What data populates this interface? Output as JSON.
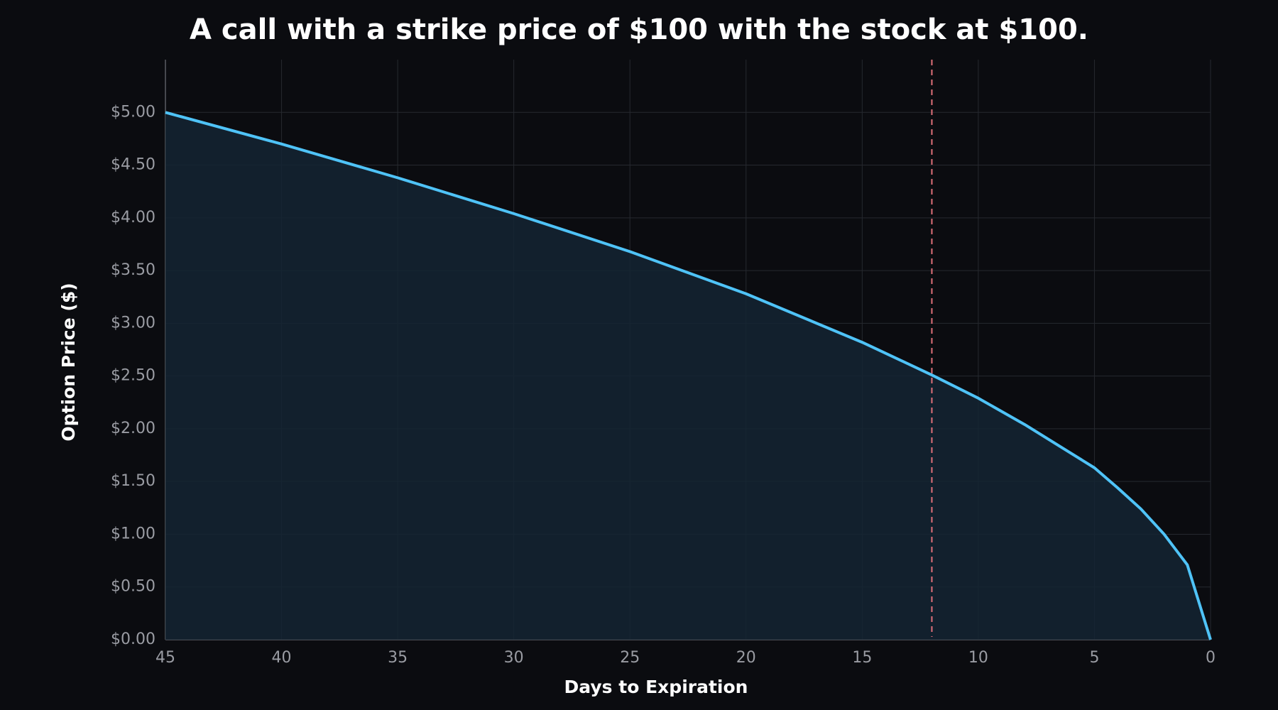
{
  "chart_data": {
    "type": "line",
    "title": "A call with a strike price of $100 with the stock at $100.",
    "x_label": "Days to Expiration",
    "y_label": "Option Price ($)",
    "x": [
      45,
      40,
      35,
      30,
      25,
      20,
      15,
      12,
      10,
      8,
      5,
      4,
      3,
      2,
      1,
      0
    ],
    "series": [
      {
        "color": "#4fc3f7",
        "values": [
          5.0,
          4.7,
          4.38,
          4.04,
          3.68,
          3.28,
          2.82,
          2.51,
          2.29,
          2.04,
          1.63,
          1.44,
          1.24,
          1.0,
          0.71,
          0.0
        ]
      }
    ],
    "vline": {
      "x": 12,
      "color": "#e0707a"
    },
    "xlim": [
      45,
      0
    ],
    "xticks": [
      45,
      40,
      35,
      30,
      25,
      20,
      15,
      10,
      5,
      0
    ],
    "ylim": [
      0,
      5.5
    ],
    "yticks": [
      {
        "value": 0,
        "label": "$0.00"
      },
      {
        "value": 0.5,
        "label": "$0.50"
      },
      {
        "value": 1,
        "label": "$1.00"
      },
      {
        "value": 1.5,
        "label": "$1.50"
      },
      {
        "value": 2,
        "label": "$2.00"
      },
      {
        "value": 2.5,
        "label": "$2.50"
      },
      {
        "value": 3,
        "label": "$3.00"
      },
      {
        "value": 3.5,
        "label": "$3.50"
      },
      {
        "value": 4,
        "label": "$4.00"
      },
      {
        "value": 4.5,
        "label": "$4.50"
      },
      {
        "value": 5,
        "label": "$5.00"
      }
    ],
    "grid": true
  }
}
